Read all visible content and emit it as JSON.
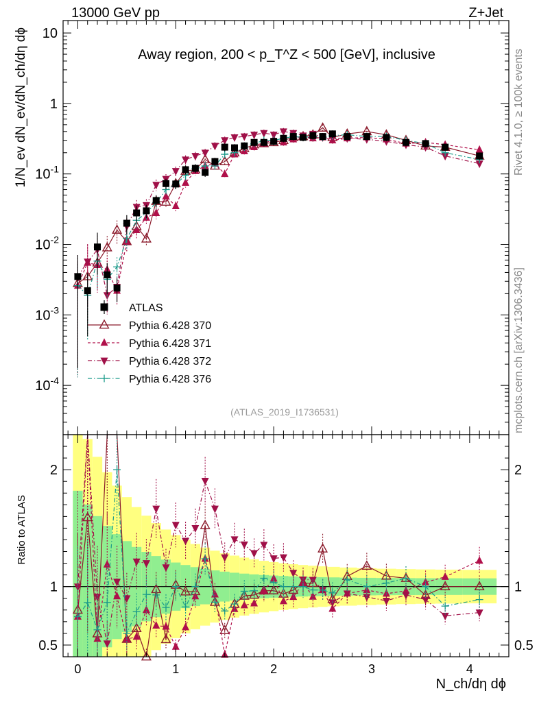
{
  "header": {
    "energy": "13000 GeV pp",
    "process": "Z+Jet"
  },
  "side": {
    "rivet": "Rivet 4.1.0, ≥ 100k events",
    "mcplots": "mcplots.cern.ch [arXiv:1306.3436]"
  },
  "chart_data": {
    "type": "scatter",
    "title": "Away region, 200 < p_T^Z < 500 [GeV], inclusive",
    "analysis_id": "(ATLAS_2019_I1736531)",
    "xlabel": "N_ch/dη dϕ",
    "ylabel": "1/N_ev dN_ev/dN_ch/dη dϕ",
    "ratio_ylabel": "Ratio to ATLAS",
    "xlim": [
      -0.15,
      4.4
    ],
    "ylim": [
      2e-05,
      15
    ],
    "yscale": "log",
    "ratio_ylim": [
      0.4,
      2.3
    ],
    "x_ticks": [
      "0",
      "1",
      "2",
      "3",
      "4"
    ],
    "y_ticks": [
      "10",
      "1",
      "10^-1",
      "10^-2",
      "10^-3",
      "10^-4"
    ],
    "ratio_ticks": [
      "0.5",
      "1",
      "2"
    ],
    "colors": {
      "data": "#000000",
      "s370": "#8b1a2b",
      "s371": "#b0104a",
      "s372": "#a01048",
      "s376": "#1a9a8a",
      "band_inner": "#90ee90",
      "band_outer": "#ffff80"
    },
    "legend": [
      {
        "label": "ATLAS",
        "key": "data"
      },
      {
        "label": "Pythia 6.428 370",
        "key": "s370"
      },
      {
        "label": "Pythia 6.428 371",
        "key": "s371"
      },
      {
        "label": "Pythia 6.428 372",
        "key": "s372"
      },
      {
        "label": "Pythia 6.428 376",
        "key": "s376"
      }
    ],
    "x": [
      0.0,
      0.1,
      0.2,
      0.3,
      0.4,
      0.5,
      0.6,
      0.7,
      0.8,
      0.9,
      1.0,
      1.1,
      1.2,
      1.3,
      1.4,
      1.5,
      1.6,
      1.7,
      1.8,
      1.9,
      2.0,
      2.1,
      2.2,
      2.3,
      2.4,
      2.5,
      2.6,
      2.75,
      2.95,
      3.15,
      3.35,
      3.55,
      3.75,
      4.1
    ],
    "series": [
      {
        "name": "ATLAS",
        "key": "data",
        "marker": "square",
        "values": [
          0.0035,
          0.0022,
          0.0092,
          0.0037,
          0.0024,
          0.02,
          0.028,
          0.03,
          0.042,
          0.073,
          0.072,
          0.115,
          0.12,
          0.105,
          0.15,
          0.24,
          0.235,
          0.25,
          0.28,
          0.28,
          0.29,
          0.32,
          0.34,
          0.33,
          0.35,
          0.34,
          0.37,
          0.34,
          0.34,
          0.33,
          0.28,
          0.27,
          0.24,
          0.18
        ]
      },
      {
        "name": "Pythia 6.428 370",
        "key": "s370",
        "marker": "triangle-open",
        "line": "solid",
        "values": [
          0.0028,
          0.0035,
          0.0055,
          0.009,
          0.016,
          0.011,
          0.018,
          0.012,
          0.041,
          0.04,
          0.073,
          0.11,
          0.115,
          0.16,
          0.13,
          0.15,
          0.2,
          0.23,
          0.26,
          0.27,
          0.28,
          0.3,
          0.33,
          0.34,
          0.36,
          0.45,
          0.33,
          0.37,
          0.4,
          0.36,
          0.3,
          0.25,
          0.24,
          0.18
        ]
      },
      {
        "name": "Pythia 6.428 371",
        "key": "s371",
        "marker": "triangle-up",
        "line": "dashed",
        "values": [
          0.0026,
          0.0055,
          0.0051,
          0.0044,
          0.0022,
          0.011,
          0.016,
          0.024,
          0.028,
          0.048,
          0.035,
          0.075,
          0.11,
          0.13,
          0.14,
          0.1,
          0.19,
          0.21,
          0.24,
          0.27,
          0.31,
          0.28,
          0.31,
          0.34,
          0.32,
          0.33,
          0.3,
          0.32,
          0.33,
          0.31,
          0.27,
          0.28,
          0.26,
          0.22
        ]
      },
      {
        "name": "Pythia 6.428 372",
        "key": "s372",
        "marker": "triangle-down",
        "line": "dash-dot",
        "values": [
          0.0035,
          0.0057,
          0.0084,
          0.0019,
          0.0025,
          0.018,
          0.034,
          0.036,
          0.07,
          0.085,
          0.11,
          0.16,
          0.18,
          0.2,
          0.25,
          0.3,
          0.33,
          0.34,
          0.36,
          0.38,
          0.36,
          0.4,
          0.38,
          0.35,
          0.37,
          0.33,
          0.32,
          0.32,
          0.31,
          0.29,
          0.26,
          0.24,
          0.18,
          0.14
        ]
      },
      {
        "name": "Pythia 6.428 376",
        "key": "s376",
        "marker": "cross",
        "line": "dash-dot",
        "values": [
          0.0026,
          0.0019,
          0.0058,
          0.0032,
          0.0048,
          0.012,
          0.022,
          0.028,
          0.039,
          0.06,
          0.072,
          0.095,
          0.12,
          0.13,
          0.13,
          0.19,
          0.2,
          0.24,
          0.27,
          0.3,
          0.3,
          0.32,
          0.34,
          0.33,
          0.34,
          0.33,
          0.35,
          0.36,
          0.34,
          0.34,
          0.3,
          0.27,
          0.2,
          0.16
        ]
      }
    ]
  }
}
